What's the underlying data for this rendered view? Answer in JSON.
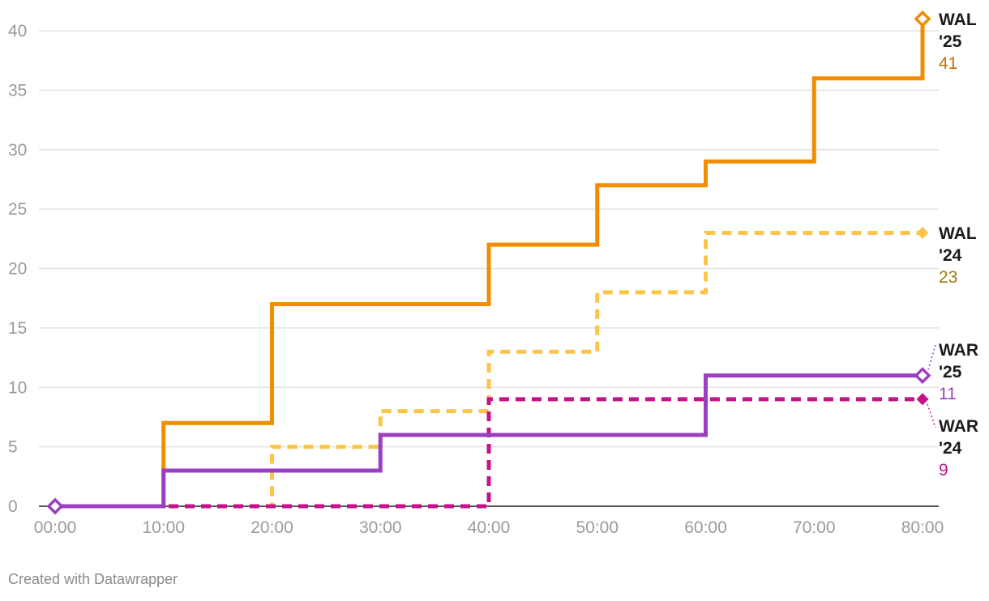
{
  "chart_data": {
    "type": "line",
    "step": true,
    "x_tick_labels": [
      "00:00",
      "10:00",
      "20:00",
      "30:00",
      "40:00",
      "50:00",
      "60:00",
      "70:00",
      "80:00"
    ],
    "y_ticks": [
      0,
      5,
      10,
      15,
      20,
      25,
      30,
      35,
      40
    ],
    "xlim": [
      "00:00",
      "80:00"
    ],
    "ylim": [
      0,
      40
    ],
    "grid": "horizontal",
    "legend": "direct labels at right end of lines",
    "series": [
      {
        "name": "WAL '25",
        "name_lines": [
          "WAL",
          "'25"
        ],
        "end_value": "41",
        "color": "#f28c00",
        "label_color": "#c46e00",
        "dash": false,
        "marker": "hollow-diamond",
        "points": [
          {
            "x": "00:00",
            "y": 0
          },
          {
            "x": "10:00",
            "y": 7
          },
          {
            "x": "20:00",
            "y": 17
          },
          {
            "x": "30:00",
            "y": 17
          },
          {
            "x": "40:00",
            "y": 22
          },
          {
            "x": "50:00",
            "y": 27
          },
          {
            "x": "60:00",
            "y": 29
          },
          {
            "x": "70:00",
            "y": 36
          },
          {
            "x": "80:00",
            "y": 41
          }
        ]
      },
      {
        "name": "WAL '24",
        "name_lines": [
          "WAL",
          "'24"
        ],
        "end_value": "23",
        "color": "#fcc54a",
        "label_color": "#a07810",
        "dash": true,
        "marker": "filled-diamond",
        "points": [
          {
            "x": "00:00",
            "y": 0
          },
          {
            "x": "10:00",
            "y": 0
          },
          {
            "x": "20:00",
            "y": 5
          },
          {
            "x": "30:00",
            "y": 8
          },
          {
            "x": "40:00",
            "y": 13
          },
          {
            "x": "50:00",
            "y": 18
          },
          {
            "x": "60:00",
            "y": 23
          },
          {
            "x": "70:00",
            "y": 23
          },
          {
            "x": "80:00",
            "y": 23
          }
        ]
      },
      {
        "name": "WAR '25",
        "name_lines": [
          "WAR",
          "'25"
        ],
        "end_value": "11",
        "color": "#9b3fc2",
        "label_color": "#9b3fc2",
        "dash": false,
        "marker": "hollow-diamond",
        "points": [
          {
            "x": "00:00",
            "y": 0
          },
          {
            "x": "10:00",
            "y": 3
          },
          {
            "x": "20:00",
            "y": 3
          },
          {
            "x": "30:00",
            "y": 6
          },
          {
            "x": "40:00",
            "y": 6
          },
          {
            "x": "50:00",
            "y": 6
          },
          {
            "x": "60:00",
            "y": 11
          },
          {
            "x": "70:00",
            "y": 11
          },
          {
            "x": "80:00",
            "y": 11
          }
        ]
      },
      {
        "name": "WAR '24",
        "name_lines": [
          "WAR",
          "'24"
        ],
        "end_value": "9",
        "color": "#c7118a",
        "label_color": "#c7118a",
        "dash": true,
        "marker": "filled-diamond",
        "points": [
          {
            "x": "00:00",
            "y": 0
          },
          {
            "x": "10:00",
            "y": 0
          },
          {
            "x": "20:00",
            "y": 0
          },
          {
            "x": "30:00",
            "y": 0
          },
          {
            "x": "40:00",
            "y": 9
          },
          {
            "x": "50:00",
            "y": 9
          },
          {
            "x": "60:00",
            "y": 9
          },
          {
            "x": "70:00",
            "y": 9
          },
          {
            "x": "80:00",
            "y": 9
          }
        ]
      }
    ]
  },
  "footer": {
    "credit": "Created with Datawrapper"
  }
}
